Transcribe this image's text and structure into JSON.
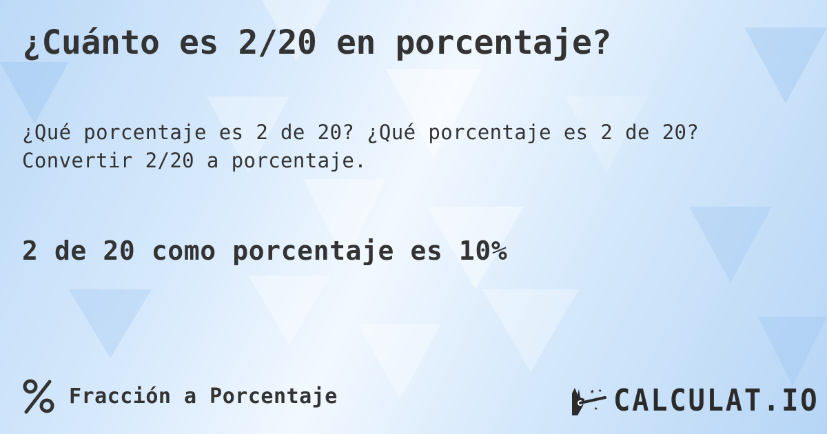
{
  "title": "¿Cuánto es 2/20 en porcentaje?",
  "description": "¿Qué porcentaje es 2 de 20? ¿Qué porcentaje es 2 de 20? Convertir 2/20 a porcentaje.",
  "answer": "2 de 20 como porcentaje es 10%",
  "footer": {
    "category_icon": "percent-icon",
    "category_label": "Fracción a Porcentaje",
    "logo_text": "CALCULAT.IO",
    "logo_icon": "magic-hand-wand-icon"
  },
  "colors": {
    "text": "#333333",
    "background": "#cfe4fa"
  }
}
